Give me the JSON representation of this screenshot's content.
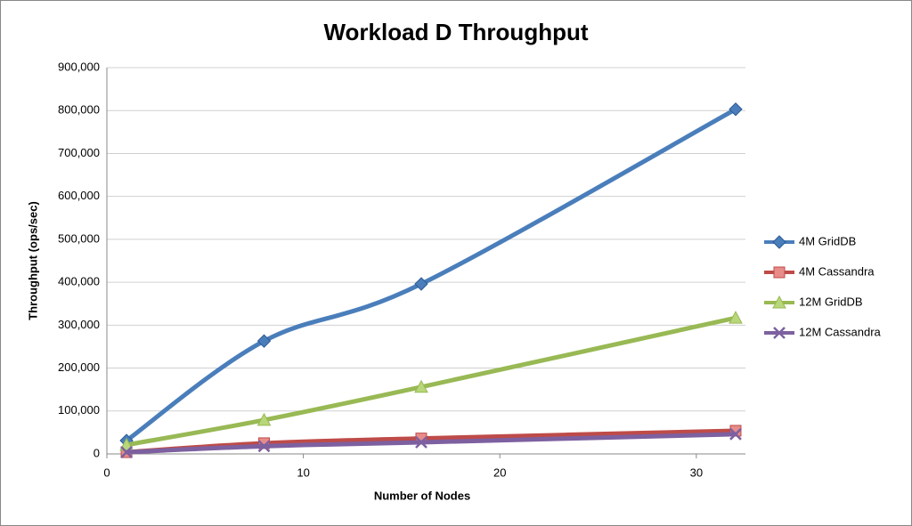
{
  "chart_data": {
    "type": "line",
    "title": "Workload D Throughput",
    "x_label": "Number of Nodes",
    "y_label": "Throughput (ops/sec)",
    "x": [
      1,
      8,
      16,
      32
    ],
    "series": [
      {
        "name": "4M GridDB",
        "color": "#4a7ebb",
        "marker": "diamond",
        "values": [
          31000,
          263000,
          396000,
          803000
        ]
      },
      {
        "name": "4M Cassandra",
        "color": "#be4b48",
        "marker": "square",
        "values": [
          4000,
          25000,
          36000,
          54000
        ]
      },
      {
        "name": "12M GridDB",
        "color": "#98b954",
        "marker": "triangle",
        "values": [
          21000,
          79000,
          156000,
          317000
        ]
      },
      {
        "name": "12M Cassandra",
        "color": "#7d60a0",
        "marker": "x",
        "values": [
          4000,
          18000,
          27000,
          46000
        ]
      }
    ],
    "xlim": [
      0,
      32.5
    ],
    "xticks": [
      0,
      10,
      20,
      30
    ],
    "ylim": [
      0,
      900000
    ],
    "yticks": [
      0,
      {
        "value": 100000,
        "label": "100,000"
      },
      {
        "value": 200000,
        "label": "200,000"
      },
      {
        "value": 300000,
        "label": "300,000"
      },
      {
        "value": 400000,
        "label": "400,000"
      },
      {
        "value": 500000,
        "label": "500,000"
      },
      {
        "value": 600000,
        "label": "600,000"
      },
      {
        "value": 700000,
        "label": "700,000"
      },
      {
        "value": 800000,
        "label": "800,000"
      },
      {
        "value": 900000,
        "label": "900,000"
      }
    ],
    "grid": true,
    "legend": "right",
    "smooth": true
  }
}
